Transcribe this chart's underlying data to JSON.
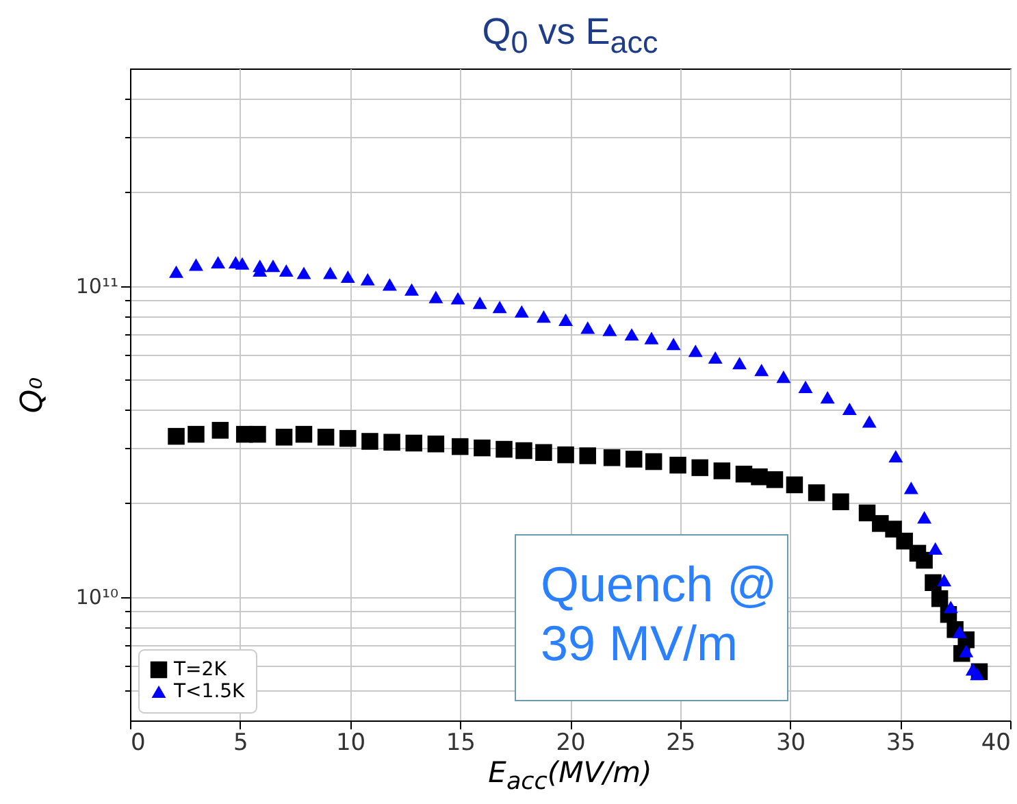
{
  "chart_data": {
    "type": "scatter",
    "title": "Q$_{0}$ vs E$_{acc}$",
    "xlabel": "E$_{acc}$(MV/m)",
    "ylabel": "Q₀",
    "annotations": [
      "Quench @ 39 MV/m"
    ],
    "xlim": [
      0,
      40
    ],
    "xticks": [
      0,
      5,
      10,
      15,
      20,
      25,
      30,
      35,
      40
    ],
    "ylim": [
      4000000000,
      500000000000
    ],
    "yticks": [
      {
        "value": 5000000000,
        "label": null
      },
      {
        "value": 6000000000,
        "label": null
      },
      {
        "value": 7000000000,
        "label": null
      },
      {
        "value": 8000000000,
        "label": null
      },
      {
        "value": 9000000000,
        "label": null
      },
      {
        "value": 10000000000,
        "label": "10¹⁰"
      },
      {
        "value": 20000000000,
        "label": null
      },
      {
        "value": 30000000000,
        "label": null
      },
      {
        "value": 40000000000,
        "label": null
      },
      {
        "value": 50000000000,
        "label": null
      },
      {
        "value": 60000000000,
        "label": null
      },
      {
        "value": 70000000000,
        "label": null
      },
      {
        "value": 80000000000,
        "label": null
      },
      {
        "value": 90000000000,
        "label": null
      },
      {
        "value": 100000000000,
        "label": "10¹¹"
      },
      {
        "value": 200000000000,
        "label": null
      },
      {
        "value": 300000000000,
        "label": null
      },
      {
        "value": 400000000000,
        "label": null
      }
    ],
    "log": "y",
    "grid": true,
    "legend": "bottom left",
    "series": [
      {
        "name": "T=2K",
        "color": "#000000",
        "marker": "square",
        "x": [
          2.1,
          3.0,
          4.1,
          5.2,
          5.8,
          7.0,
          7.9,
          8.9,
          9.9,
          10.9,
          11.9,
          12.9,
          13.9,
          15.0,
          16.0,
          17.0,
          17.9,
          18.8,
          19.8,
          20.8,
          21.9,
          22.9,
          23.8,
          24.9,
          25.9,
          26.9,
          27.9,
          28.6,
          29.3,
          30.2,
          31.2,
          32.3,
          33.5,
          34.1,
          34.7,
          35.2,
          35.8,
          36.1,
          36.5,
          36.8,
          37.2,
          37.5,
          38.0,
          37.8,
          38.6
        ],
        "values": [
          32800000000,
          33300000000,
          34300000000,
          33300000000,
          33300000000,
          32600000000,
          33300000000,
          32600000000,
          32300000000,
          31600000000,
          31400000000,
          31200000000,
          31000000000,
          30400000000,
          30100000000,
          29800000000,
          29500000000,
          29100000000,
          28600000000,
          28400000000,
          28000000000,
          27700000000,
          27200000000,
          26500000000,
          26000000000,
          25400000000,
          24800000000,
          24300000000,
          23800000000,
          22900000000,
          21600000000,
          20200000000,
          18600000000,
          17200000000,
          16500000000,
          15100000000,
          13800000000,
          13100000000,
          11100000000,
          9860000000,
          8770000000,
          7840000000,
          7270000000,
          6570000000,
          5740000000
        ]
      },
      {
        "name": "T<1.5K",
        "color": "#0000ff",
        "marker": "triangle",
        "x": [
          2.1,
          3.0,
          4.0,
          4.8,
          5.1,
          5.9,
          5.9,
          6.5,
          7.1,
          7.9,
          9.1,
          9.9,
          10.8,
          11.8,
          12.8,
          13.9,
          14.9,
          15.9,
          16.8,
          17.8,
          18.8,
          19.8,
          20.8,
          21.8,
          22.8,
          23.7,
          24.7,
          25.7,
          26.6,
          27.7,
          28.7,
          29.7,
          30.7,
          31.7,
          32.7,
          33.6,
          34.8,
          35.5,
          36.1,
          36.6,
          37.0,
          37.3,
          37.7,
          38.0,
          38.3,
          38.5
        ],
        "values": [
          111000000000,
          117000000000,
          119000000000,
          119000000000,
          118000000000,
          116000000000,
          112000000000,
          116000000000,
          112000000000,
          110000000000,
          110000000000,
          107000000000,
          105000000000,
          101000000000,
          97300000000,
          92100000000,
          91200000000,
          88200000000,
          85500000000,
          82700000000,
          79700000000,
          77800000000,
          73400000000,
          72200000000,
          69800000000,
          67900000000,
          65000000000,
          61800000000,
          58800000000,
          56400000000,
          53600000000,
          51000000000,
          47300000000,
          43800000000,
          40200000000,
          36600000000,
          28300000000,
          22400000000,
          18000000000,
          14300000000,
          11300000000,
          9270000000,
          7710000000,
          6690000000,
          5840000000,
          5640000000
        ]
      }
    ]
  }
}
